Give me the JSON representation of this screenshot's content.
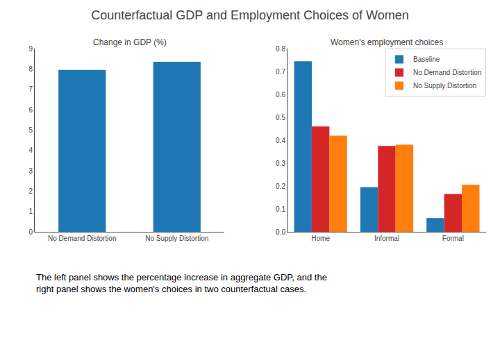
{
  "title": "Counterfactual GDP and Employment Choices of Women",
  "caption": "The left panel shows the percentage increase in aggregate GDP, and the\nright panel shows the women's choices in two counterfactual cases.",
  "chart_data": [
    {
      "type": "bar",
      "title": "Change in GDP (%)",
      "categories": [
        "No Demand Distortion",
        "No Supply Distortion"
      ],
      "values": [
        7.95,
        8.35
      ],
      "color": "#1f77b4",
      "ylim": [
        0,
        9
      ],
      "yticks": [
        0,
        1,
        2,
        3,
        4,
        5,
        6,
        7,
        8,
        9
      ],
      "grid": false
    },
    {
      "type": "bar",
      "title": "Women's employment choices",
      "categories": [
        "Home",
        "Informal",
        "Formal"
      ],
      "series": [
        {
          "name": "Baseline",
          "color": "#1f77b4",
          "values": [
            0.745,
            0.195,
            0.06
          ]
        },
        {
          "name": "No Demand Distortion",
          "color": "#d62728",
          "values": [
            0.46,
            0.375,
            0.165
          ]
        },
        {
          "name": "No Supply Distortion",
          "color": "#ff7f0e",
          "values": [
            0.42,
            0.38,
            0.205
          ]
        }
      ],
      "ylim": [
        0,
        0.8
      ],
      "yticks": [
        {
          "value": 0,
          "label": "0.0"
        },
        0.1,
        0.2,
        0.3,
        0.4,
        0.5,
        0.6,
        0.7,
        0.8
      ],
      "grid": false,
      "legend": "upper right"
    }
  ]
}
